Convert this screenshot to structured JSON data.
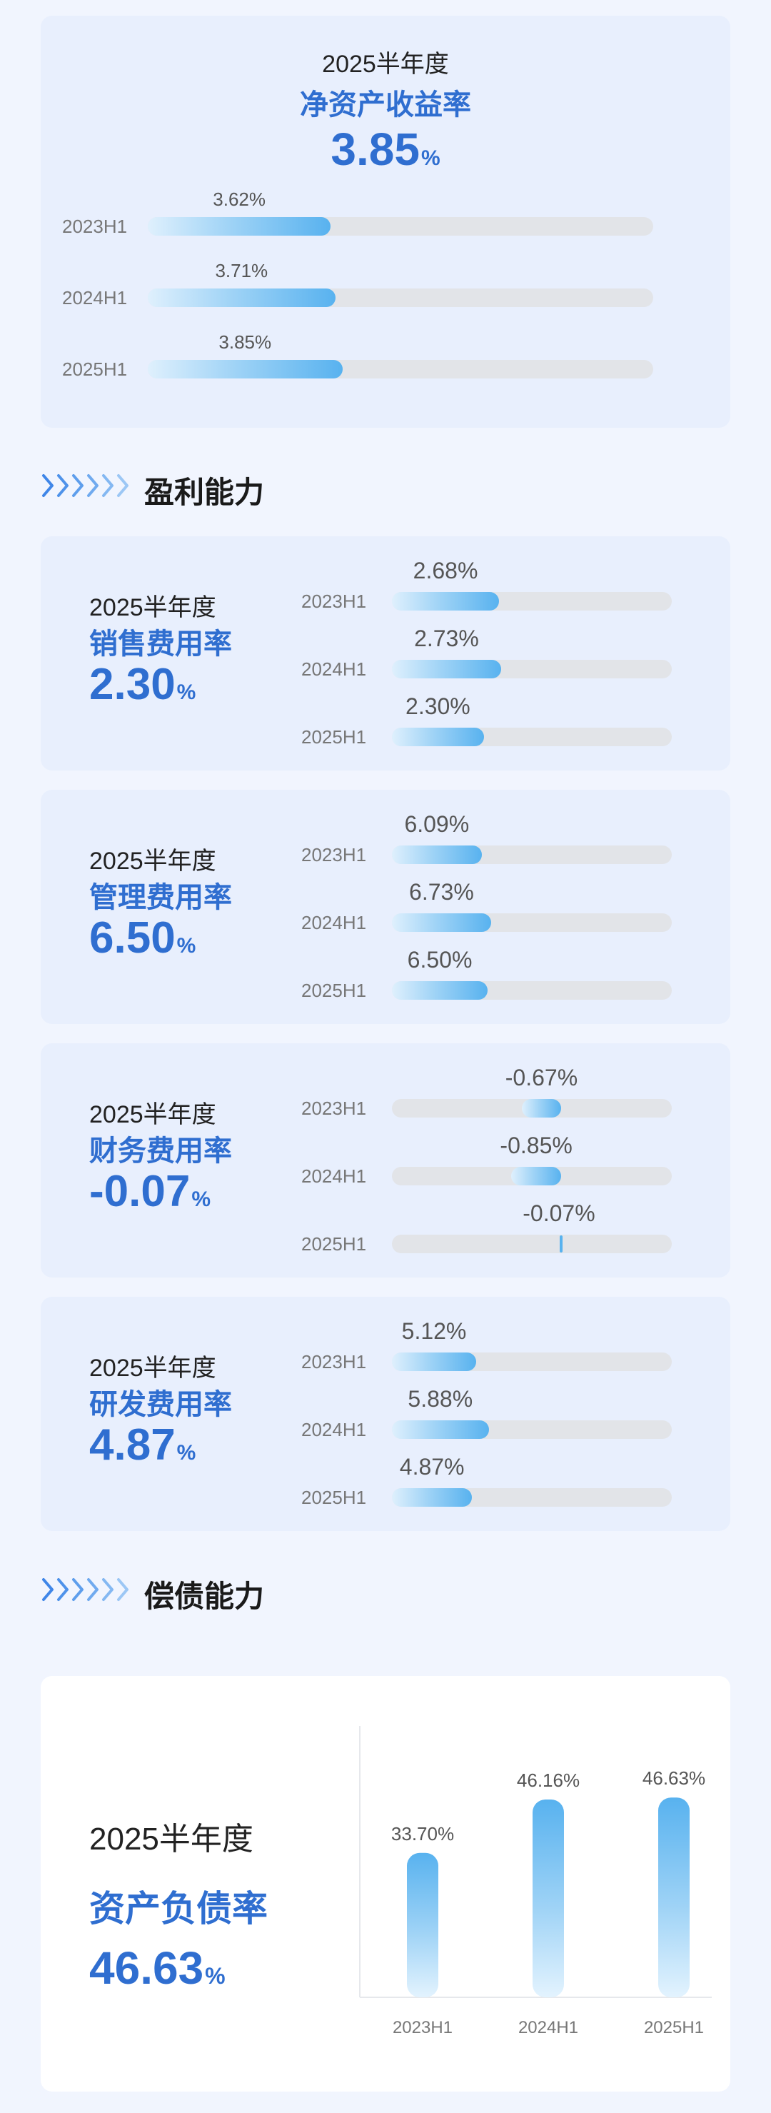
{
  "roe": {
    "period": "2025半年度",
    "name": "净资产收益率",
    "value": "3.85",
    "unit": "%"
  },
  "sections": {
    "profit": "盈利能力",
    "debt": "偿债能力"
  },
  "metrics": [
    {
      "period": "2025半年度",
      "name": "销售费用率",
      "value": "2.30",
      "unit": "%"
    },
    {
      "period": "2025半年度",
      "name": "管理费用率",
      "value": "6.50",
      "unit": "%"
    },
    {
      "period": "2025半年度",
      "name": "财务费用率",
      "value": "-0.07",
      "unit": "%"
    },
    {
      "period": "2025半年度",
      "name": "研发费用率",
      "value": "4.87",
      "unit": "%"
    }
  ],
  "debt": {
    "period": "2025半年度",
    "name": "资产负债率",
    "value": "46.63",
    "unit": "%"
  },
  "colors": {
    "accent": "#2f6ed0",
    "bar_light": "#dff0fd",
    "bar_dark": "#58b2ef",
    "track": "#e2e4e8",
    "card": "#e8effd",
    "page": "#f1f5fe"
  },
  "chart_data": [
    {
      "type": "bar",
      "orientation": "horizontal",
      "title": "净资产收益率",
      "categories": [
        "2023H1",
        "2024H1",
        "2025H1"
      ],
      "values": [
        3.62,
        3.71,
        3.85
      ],
      "labels": [
        "3.62%",
        "3.71%",
        "3.85%"
      ],
      "xlim": [
        0,
        10
      ]
    },
    {
      "type": "bar",
      "orientation": "horizontal",
      "title": "销售费用率",
      "categories": [
        "2023H1",
        "2024H1",
        "2025H1"
      ],
      "values": [
        2.68,
        2.73,
        2.3
      ],
      "labels": [
        "2.68%",
        "2.73%",
        "2.30%"
      ],
      "xlim": [
        0,
        7
      ]
    },
    {
      "type": "bar",
      "orientation": "horizontal",
      "title": "管理费用率",
      "categories": [
        "2023H1",
        "2024H1",
        "2025H1"
      ],
      "values": [
        6.09,
        6.73,
        6.5
      ],
      "labels": [
        "6.09%",
        "6.73%",
        "6.50%"
      ],
      "xlim": [
        0,
        19
      ]
    },
    {
      "type": "bar",
      "orientation": "horizontal",
      "title": "财务费用率",
      "categories": [
        "2023H1",
        "2024H1",
        "2025H1"
      ],
      "values": [
        -0.67,
        -0.85,
        -0.07
      ],
      "labels": [
        "-0.67%",
        "-0.85%",
        "-0.07%"
      ],
      "xlim": [
        -2.9,
        1.9
      ]
    },
    {
      "type": "bar",
      "orientation": "horizontal",
      "title": "研发费用率",
      "categories": [
        "2023H1",
        "2024H1",
        "2025H1"
      ],
      "values": [
        5.12,
        5.88,
        4.87
      ],
      "labels": [
        "5.12%",
        "5.88%",
        "4.87%"
      ],
      "xlim": [
        0,
        17
      ]
    },
    {
      "type": "bar",
      "orientation": "vertical",
      "title": "资产负债率",
      "categories": [
        "2023H1",
        "2024H1",
        "2025H1"
      ],
      "values": [
        33.7,
        46.16,
        46.63
      ],
      "labels": [
        "33.70%",
        "46.16%",
        "46.63%"
      ],
      "ylim": [
        0,
        50
      ]
    }
  ]
}
